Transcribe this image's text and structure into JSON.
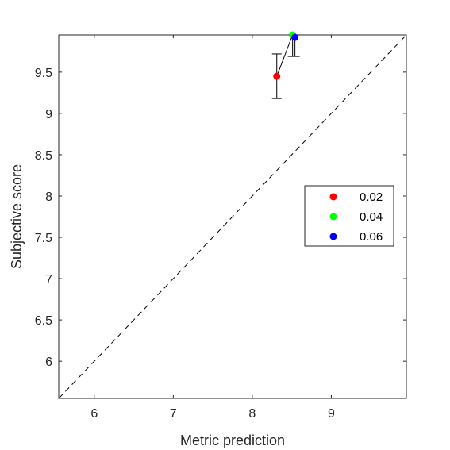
{
  "chart_data": {
    "type": "scatter",
    "xlabel": "Metric prediction",
    "ylabel": "Subjective score",
    "xlim": [
      5.55,
      9.95
    ],
    "ylim": [
      5.55,
      9.95
    ],
    "x_ticks": [
      6,
      7,
      8,
      9
    ],
    "y_ticks": [
      6,
      6.5,
      7,
      7.5,
      8,
      8.5,
      9,
      9.5
    ],
    "x_tick_labels": [
      "6",
      "7",
      "8",
      "9"
    ],
    "y_tick_labels": [
      "6",
      "6.5",
      "7",
      "7.5",
      "8",
      "8.5",
      "9",
      "9.5"
    ],
    "grid": false,
    "legend_position": "right",
    "reference_line": {
      "style": "dashed",
      "from": [
        5.55,
        5.55
      ],
      "to": [
        9.95,
        9.95
      ]
    },
    "connecting_line": true,
    "series": [
      {
        "name": "0.02",
        "color": "#ff0000",
        "x": 8.31,
        "y": 9.45,
        "y_err_low": 9.18,
        "y_err_high": 9.72
      },
      {
        "name": "0.04",
        "color": "#00ff00",
        "x": 8.51,
        "y": 9.95,
        "y_err_low": 9.69,
        "y_err_high": 9.95
      },
      {
        "name": "0.06",
        "color": "#0000ff",
        "x": 8.54,
        "y": 9.92,
        "y_err_low": 9.69,
        "y_err_high": 9.95
      }
    ]
  }
}
